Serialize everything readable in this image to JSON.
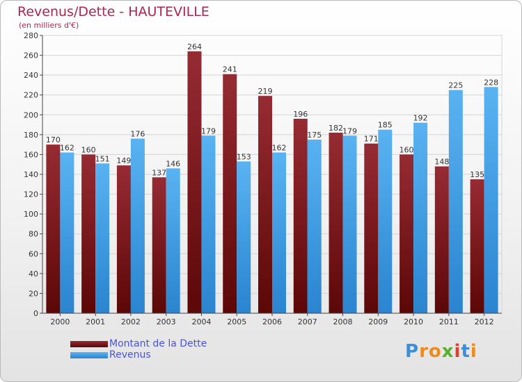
{
  "chart_data": {
    "type": "bar",
    "title": "Revenus/Dette - HAUTEVILLE",
    "subtitle": "(en milliers d'€)",
    "categories": [
      "2000",
      "2001",
      "2002",
      "2003",
      "2004",
      "2005",
      "2006",
      "2007",
      "2008",
      "2009",
      "2010",
      "2011",
      "2012"
    ],
    "series": [
      {
        "name": "Montant de la Dette",
        "color": "#8b1a1a",
        "values": [
          170,
          160,
          149,
          137,
          264,
          241,
          219,
          196,
          182,
          171,
          160,
          148,
          135
        ]
      },
      {
        "name": "Revenus",
        "color": "#3d9be0",
        "values": [
          162,
          151,
          176,
          146,
          179,
          153,
          162,
          175,
          179,
          185,
          192,
          225,
          228
        ]
      }
    ],
    "ylim": [
      0,
      280
    ],
    "yticks": [
      0,
      20,
      40,
      60,
      80,
      100,
      120,
      140,
      160,
      180,
      200,
      220,
      240,
      260,
      280
    ],
    "grid": true,
    "legend_position": "bottom-left"
  },
  "brand": {
    "letters": [
      {
        "ch": "P",
        "color": "#3a8fd6"
      },
      {
        "ch": "r",
        "color": "#f08a1c"
      },
      {
        "ch": "o",
        "color": "#f08a1c"
      },
      {
        "ch": "x",
        "color": "#59b02f"
      },
      {
        "ch": "i",
        "color": "#e63e2e"
      },
      {
        "ch": "t",
        "color": "#3a8fd6"
      },
      {
        "ch": "i",
        "color": "#f08a1c"
      }
    ]
  }
}
